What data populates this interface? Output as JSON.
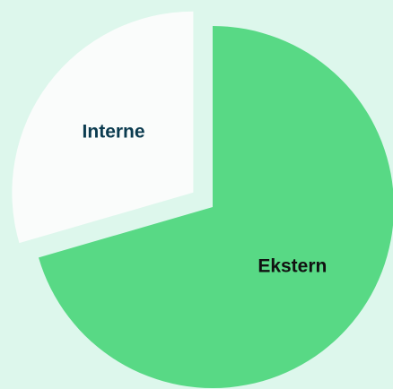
{
  "chart_data": {
    "type": "pie",
    "slices": [
      {
        "label": "Ekstern",
        "value": 70.5,
        "color": "#58d985",
        "text_color": "#111111",
        "exploded": false
      },
      {
        "label": "Interne",
        "value": 29.5,
        "color": "#fafcfb",
        "text_color": "#0b3b4f",
        "exploded": true
      }
    ],
    "background": "#ddf7ec",
    "legend": "none"
  }
}
